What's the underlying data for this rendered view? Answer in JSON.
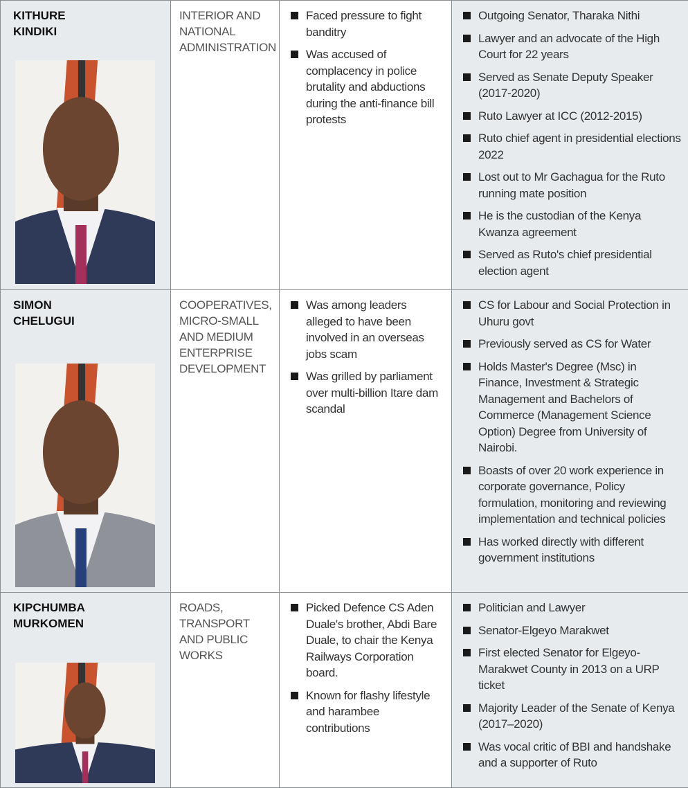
{
  "table": {
    "rows": [
      {
        "name": "KITHURE KINDIKI",
        "ministry": "INTERIOR AND NATIONAL ADMINISTRATION",
        "issues": [
          "Faced pressure to fight banditry",
          "Was accused of complacency in police brutality and abductions during the anti-finance bill protests"
        ],
        "profile": [
          "Outgoing Senator, Tharaka Nithi",
          "Lawyer and an advocate of the High Court for 22 years",
          "Served as Senate Deputy Speaker (2017-2020)",
          "Ruto Lawyer at ICC (2012-2015)",
          "Ruto chief agent in presidential elections 2022",
          "Lost out to Mr Gachagua for the Ruto running mate position",
          "He is the custodian of the Kenya Kwanza agreement",
          "Served as Ruto's chief presidential election agent"
        ]
      },
      {
        "name": "SIMON CHELUGUI",
        "ministry": "COOPERATIVES, MICRO-SMALL AND MEDIUM ENTERPRISE DEVELOPMENT",
        "issues": [
          "Was among leaders alleged to have been involved in an overseas jobs scam",
          "Was grilled by parliament over multi-billion Itare dam scandal"
        ],
        "profile": [
          "CS for Labour and Social Protection in Uhuru govt",
          "Previously served as CS for Water",
          "Holds Master's Degree (Msc) in Finance, Investment & Strategic Management and Bachelors of Commerce (Management Science Option) Degree from University of Nairobi.",
          "Boasts of over 20 work experience in corporate governance, Policy formulation, monitoring and reviewing implementation and technical policies",
          "Has worked directly with different government institutions"
        ]
      },
      {
        "name": "KIPCHUMBA MURKOMEN",
        "ministry": "ROADS, TRANSPORT AND PUBLIC WORKS",
        "issues": [
          "Picked Defence CS Aden Duale's brother, Abdi Bare Duale, to chair the Kenya Railways Corporation board.",
          "Known for flashy lifestyle and harambee contributions"
        ],
        "profile": [
          "Politician and Lawyer",
          "Senator-Elgeyo Marakwet",
          "First elected Senator for Elgeyo-Marakwet County in 2013 on a URP ticket",
          "Majority Leader of the Senate of Kenya (2017–2020)",
          "Was vocal critic of BBI and handshake and a supporter of Ruto"
        ]
      }
    ]
  }
}
